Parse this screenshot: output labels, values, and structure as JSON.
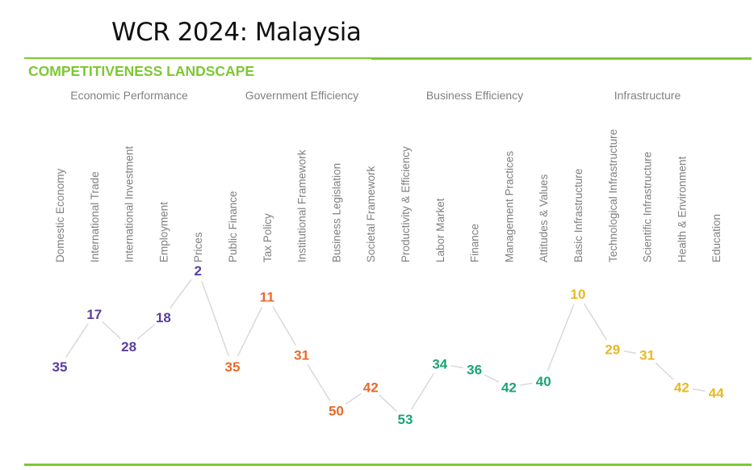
{
  "title": "WCR 2024: Malaysia",
  "subtitle": "COMPETITIVENESS LANDSCAPE",
  "chart_data": {
    "type": "line",
    "title": "",
    "xlabel": "",
    "ylabel": "",
    "y_inverted": true,
    "grid": false,
    "groups": [
      {
        "name": "Economic Performance",
        "color": "#5b3d9e",
        "categories": [
          "Domestic Economy",
          "International Trade",
          "International Investment",
          "Employment",
          "Prices"
        ],
        "values": [
          35,
          17,
          28,
          18,
          2
        ]
      },
      {
        "name": "Government Efficiency",
        "color": "#e8692a",
        "categories": [
          "Public Finance",
          "Tax Policy",
          "Institutional Framework",
          "Business Legislation",
          "Societal Framework"
        ],
        "values": [
          35,
          11,
          31,
          50,
          42
        ]
      },
      {
        "name": "Business Efficiency",
        "color": "#1aa673",
        "categories": [
          "Productivity & Efficiency",
          "Labor Market",
          "Finance",
          "Management Practices",
          "Attitudes & Values"
        ],
        "values": [
          53,
          34,
          36,
          42,
          40
        ]
      },
      {
        "name": "Infrastructure",
        "color": "#e8b923",
        "categories": [
          "Basic Infrastructure",
          "Technological Infrastructure",
          "Scientific Infrastructure",
          "Health & Environment",
          "Education"
        ],
        "values": [
          10,
          29,
          31,
          42,
          44
        ]
      }
    ],
    "line_color": "#d9d9d9",
    "accent": "#7dc832"
  }
}
